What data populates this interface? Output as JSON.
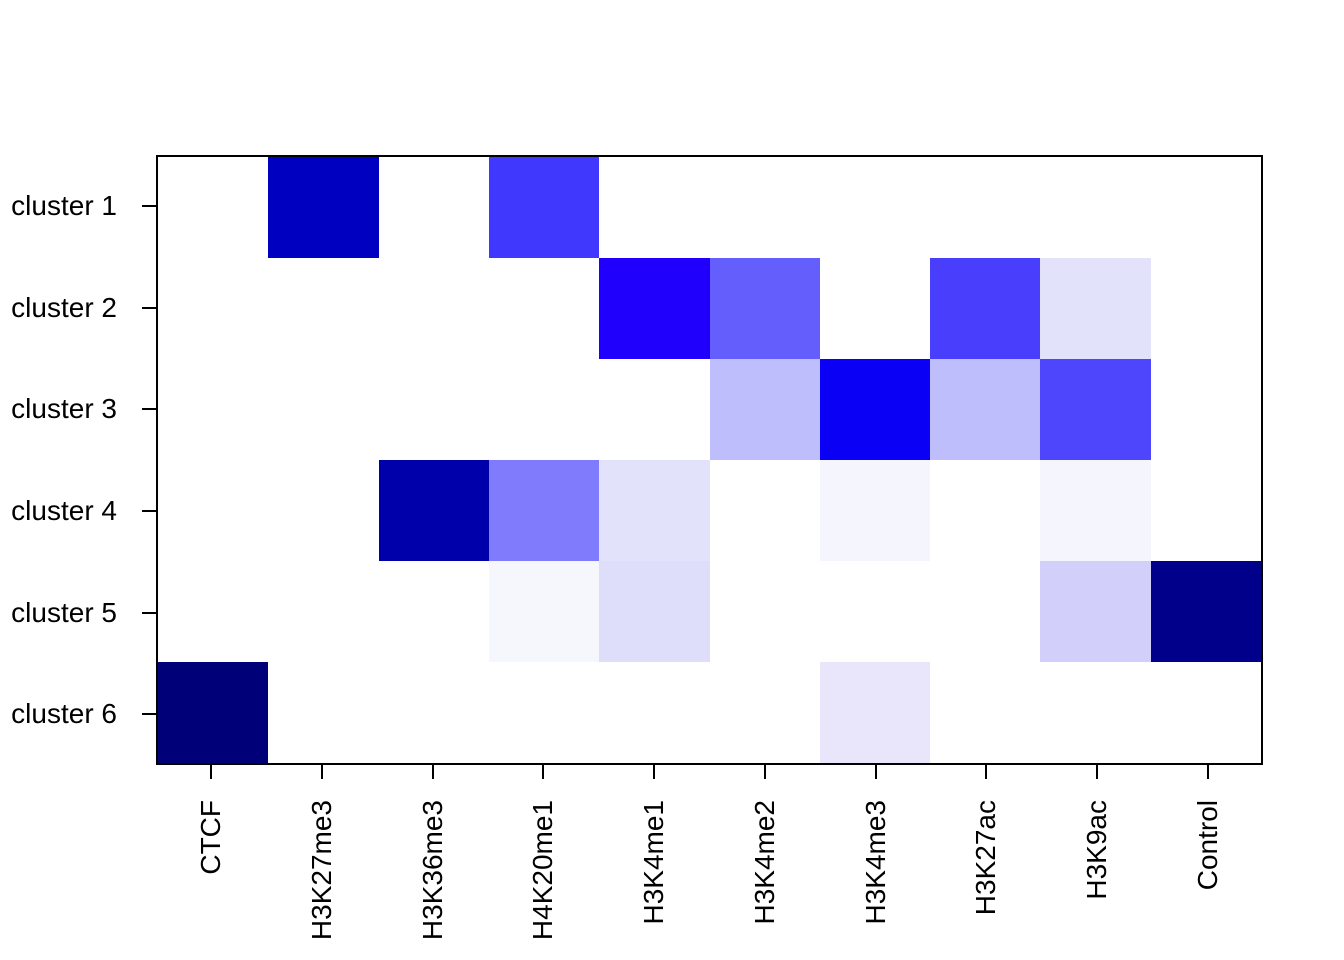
{
  "figure": {
    "background": "#FFFFFF",
    "plot_border_color": "#000000",
    "tick_color": "#000000",
    "label_color": "#000000"
  },
  "chart_data": {
    "type": "heatmap",
    "title": "",
    "xlabel": "",
    "ylabel": "",
    "grid": "off",
    "legend": "none",
    "x_categories": [
      "CTCF",
      "H3K27me3",
      "H3K36me3",
      "H4K20me1",
      "H3K4me1",
      "H3K4me2",
      "H3K4me3",
      "H3K27ac",
      "H3K9ac",
      "Control"
    ],
    "y_categories": [
      "cluster 1",
      "cluster 2",
      "cluster 3",
      "cluster 4",
      "cluster 5",
      "cluster 6"
    ],
    "colormap": {
      "low": "#FFFFFF",
      "mid": "#0000FF",
      "high": "#000078"
    },
    "values": [
      [
        0,
        0.75,
        0,
        0.4,
        0,
        0,
        0,
        0,
        0,
        0
      ],
      [
        0,
        0,
        0,
        0,
        0.46,
        0.31,
        0,
        0.38,
        0.06,
        0
      ],
      [
        0,
        0,
        0,
        0,
        0,
        0.13,
        0.5,
        0.13,
        0.36,
        0
      ],
      [
        0,
        0,
        0.83,
        0.26,
        0.06,
        0,
        0.02,
        0,
        0.02,
        0
      ],
      [
        0,
        0,
        0,
        0.02,
        0.07,
        0,
        0,
        0,
        0.09,
        0.95
      ],
      [
        1.0,
        0,
        0,
        0,
        0,
        0,
        0.05,
        0,
        0,
        0
      ]
    ],
    "cell_colors": [
      [
        "#FFFFFF",
        "#0000C0",
        "#FFFFFF",
        "#4038FC",
        "#FFFFFF",
        "#FFFFFF",
        "#FFFFFF",
        "#FFFFFF",
        "#FFFFFF",
        "#FFFFFF"
      ],
      [
        "#FFFFFF",
        "#FFFFFF",
        "#FFFFFF",
        "#FFFFFF",
        "#2000FC",
        "#645FFC",
        "#FFFFFF",
        "#483EFC",
        "#E2E2FA",
        "#FFFFFF"
      ],
      [
        "#FFFFFF",
        "#FFFFFF",
        "#FFFFFF",
        "#FFFFFF",
        "#FFFFFF",
        "#BEBEFC",
        "#0A00F5",
        "#BEBEFC",
        "#4E46FC",
        "#FFFFFF"
      ],
      [
        "#FFFFFF",
        "#FFFFFF",
        "#0000AA",
        "#807AFC",
        "#E2E2FA",
        "#FFFFFF",
        "#F5F5FD",
        "#FFFFFF",
        "#F5F5FD",
        "#FFFFFF"
      ],
      [
        "#FFFFFF",
        "#FFFFFF",
        "#FFFFFF",
        "#F6F6FD",
        "#DEDEFA",
        "#FFFFFF",
        "#FFFFFF",
        "#FFFFFF",
        "#D2D0FA",
        "#00008B"
      ],
      [
        "#000078",
        "#FFFFFF",
        "#FFFFFF",
        "#FFFFFF",
        "#FFFFFF",
        "#FFFFFF",
        "#E9E6FC",
        "#FFFFFF",
        "#FFFFFF",
        "#FFFFFF"
      ]
    ]
  }
}
